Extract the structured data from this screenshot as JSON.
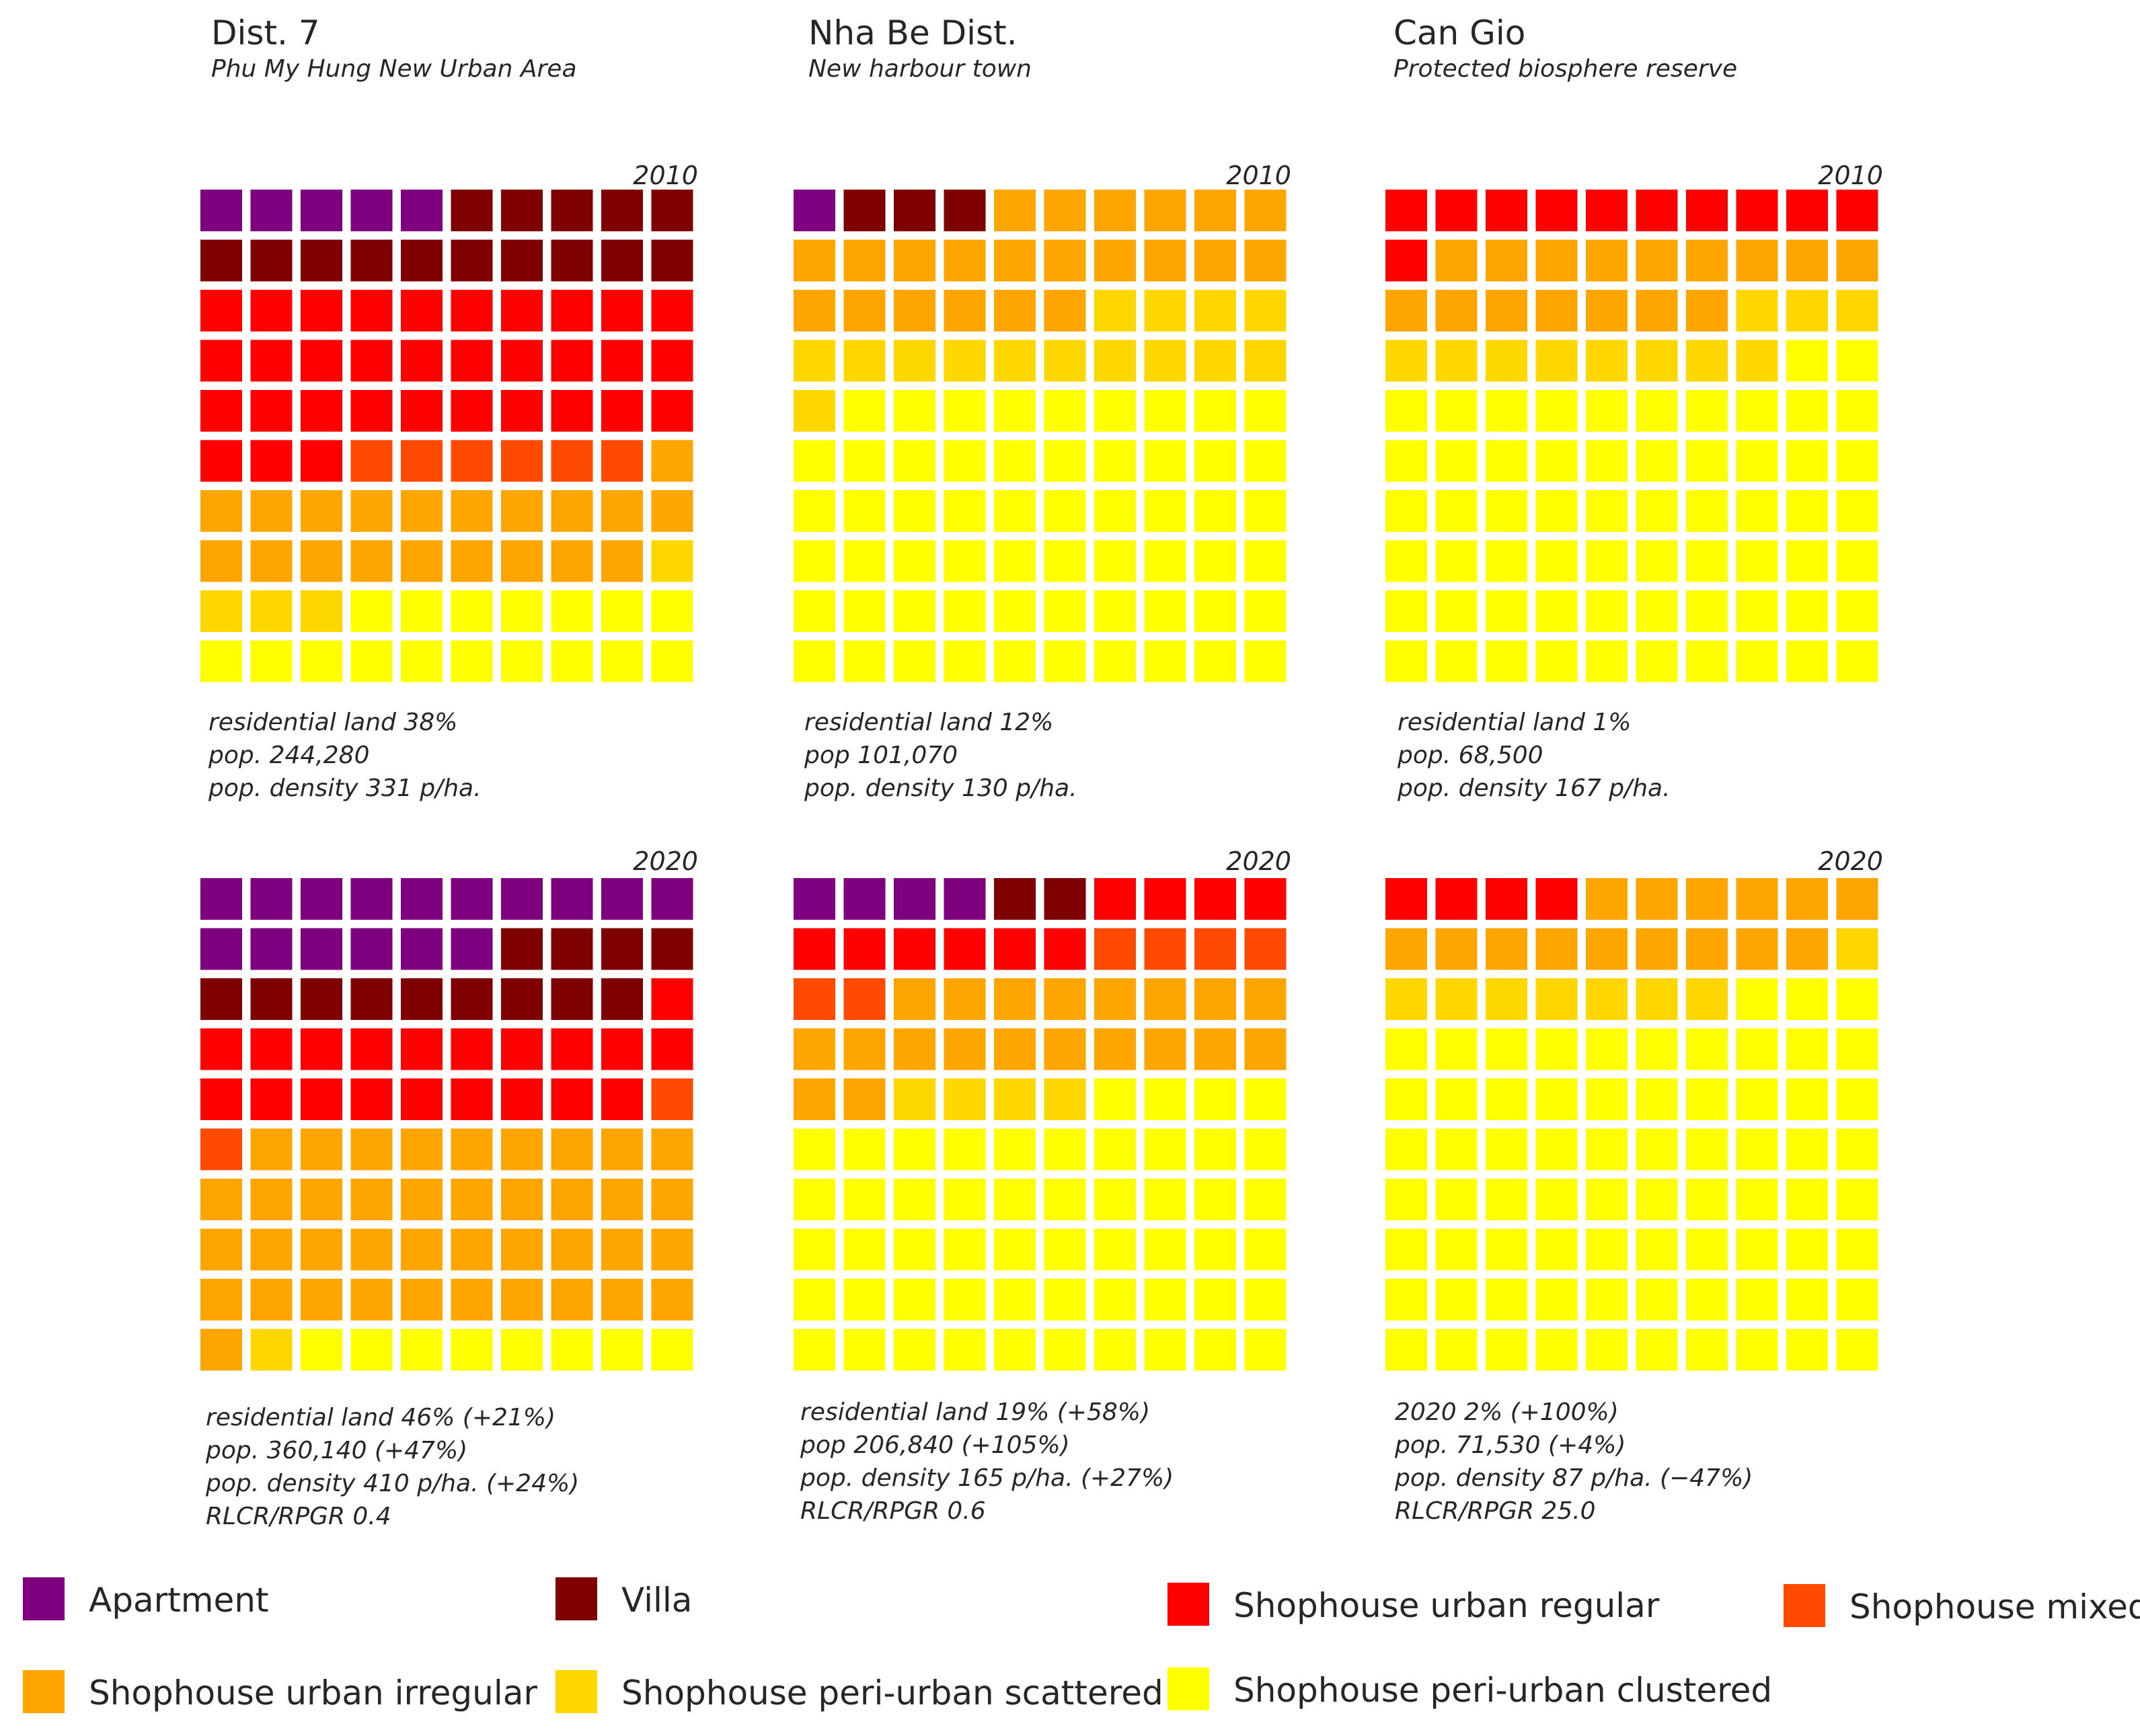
{
  "columns": [
    {
      "title": "Dist. 7",
      "subtitle": "Phu My Hung New Urban Area"
    },
    {
      "title": "Nha Be Dist.",
      "subtitle": "New harbour town"
    },
    {
      "title": "Can Gio",
      "subtitle": "Protected biosphere reserve"
    }
  ],
  "categories": [
    {
      "key": "apartment",
      "label": "Apartment",
      "color": "#7f007f"
    },
    {
      "key": "villa",
      "label": "Villa",
      "color": "#7f0000"
    },
    {
      "key": "sh_urban_regular",
      "label": "Shophouse urban regular",
      "color": "#ff0000"
    },
    {
      "key": "sh_mixed",
      "label": "Shophouse mixed",
      "color": "#ff4a00"
    },
    {
      "key": "sh_urban_irregular",
      "label": "Shophouse urban irregular",
      "color": "#ffa500"
    },
    {
      "key": "sh_periurban_scattered",
      "label": "Shophouse peri-urban scattered",
      "color": "#ffd700"
    },
    {
      "key": "sh_periurban_clustered",
      "label": "Shophouse peri-urban clustered",
      "color": "#ffff00"
    }
  ],
  "chart_data": [
    {
      "type": "waffle",
      "year": "2010",
      "grid": [
        10,
        10
      ],
      "counts": [
        5,
        15,
        33,
        6,
        20,
        4,
        17
      ],
      "stats": [
        "residential land 38%",
        "pop. 244,280",
        "pop. density 331 p/ha."
      ]
    },
    {
      "type": "waffle",
      "year": "2010",
      "grid": [
        10,
        10
      ],
      "counts": [
        1,
        3,
        0,
        0,
        22,
        15,
        59
      ],
      "stats": [
        "residential land 12%",
        "pop 101,070",
        "pop. density 130 p/ha."
      ]
    },
    {
      "type": "waffle",
      "year": "2010",
      "grid": [
        10,
        10
      ],
      "counts": [
        0,
        0,
        11,
        0,
        16,
        11,
        62
      ],
      "stats": [
        "residential land 1%",
        "pop. 68,500",
        "pop. density 167 p/ha."
      ]
    },
    {
      "type": "waffle",
      "year": "2020",
      "grid": [
        10,
        10
      ],
      "counts": [
        16,
        13,
        20,
        2,
        40,
        1,
        8
      ],
      "stats": [
        "residential land 46% (+21%)",
        "pop. 360,140 (+47%)",
        "pop. density  410 p/ha. (+24%)",
        "RLCR/RPGR 0.4"
      ]
    },
    {
      "type": "waffle",
      "year": "2020",
      "grid": [
        10,
        10
      ],
      "counts": [
        4,
        2,
        10,
        6,
        20,
        4,
        54
      ],
      "stats": [
        "residential land 19% (+58%)",
        "pop 206,840 (+105%)",
        "pop. density 165 p/ha. (+27%)",
        "RLCR/RPGR 0.6"
      ]
    },
    {
      "type": "waffle",
      "year": "2020",
      "grid": [
        10,
        10
      ],
      "counts": [
        0,
        0,
        4,
        0,
        15,
        8,
        73
      ],
      "stats": [
        "2020 2% (+100%)",
        "pop. 71,530 (+4%)",
        "pop. density 87 p/ha. (−47%)",
        "RLCR/RPGR 25.0"
      ]
    }
  ]
}
